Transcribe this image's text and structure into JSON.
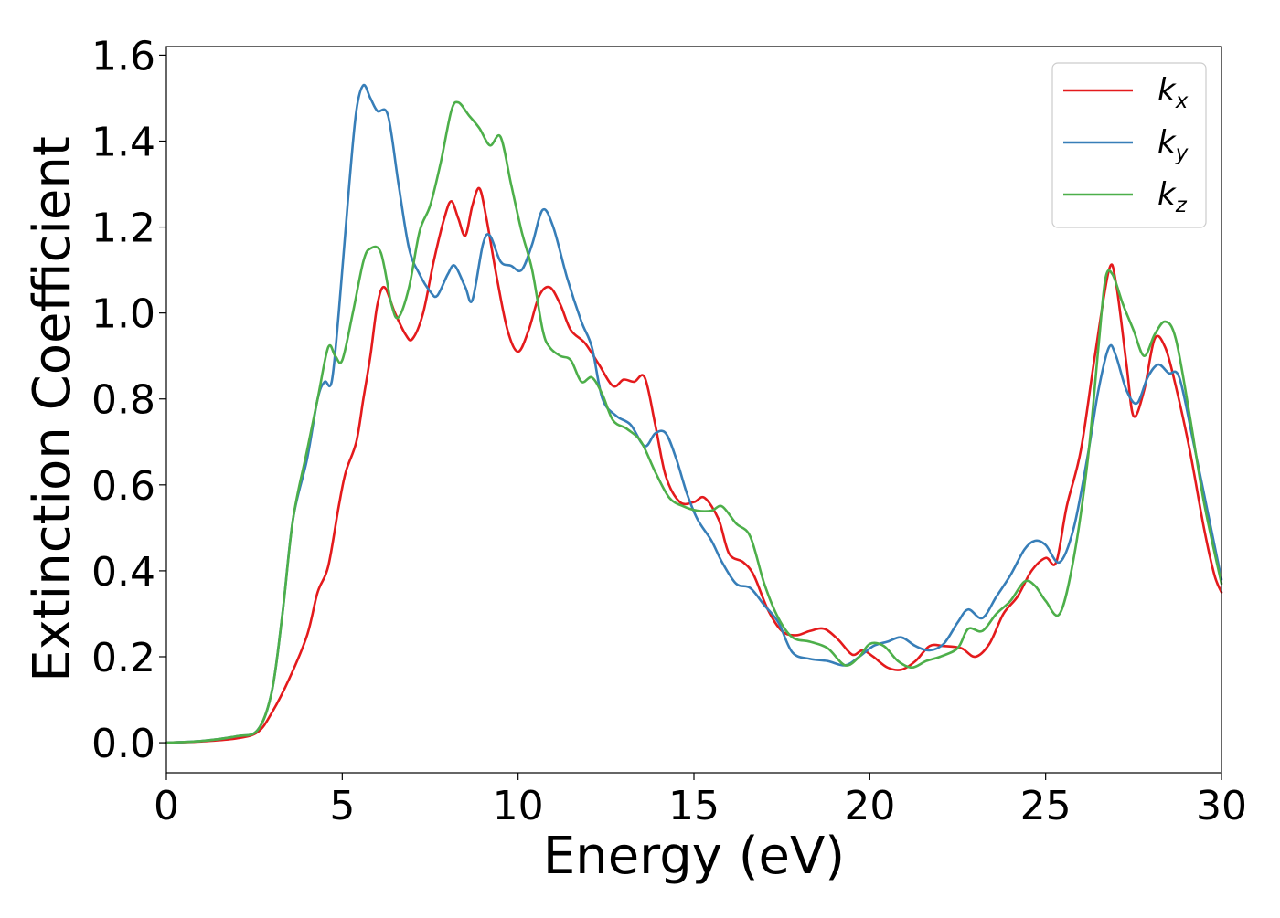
{
  "chart_data": {
    "type": "line",
    "title": "",
    "xlabel": "Energy (eV)",
    "ylabel": "Extinction Coefficient",
    "xlim": [
      0,
      30
    ],
    "ylim": [
      -0.07,
      1.62
    ],
    "xticks": [
      0,
      5,
      10,
      15,
      20,
      25,
      30
    ],
    "xtick_labels": [
      "0",
      "5",
      "10",
      "15",
      "20",
      "25",
      "30"
    ],
    "yticks": [
      0.0,
      0.2,
      0.4,
      0.6,
      0.8,
      1.0,
      1.2,
      1.4,
      1.6
    ],
    "ytick_labels": [
      "0.0",
      "0.2",
      "0.4",
      "0.6",
      "0.8",
      "1.0",
      "1.2",
      "1.4",
      "1.6"
    ],
    "grid": false,
    "legend": {
      "position": "top-right",
      "entries": [
        {
          "base": "k",
          "sub": "x",
          "color": "#e41a1c"
        },
        {
          "base": "k",
          "sub": "y",
          "color": "#377eb8"
        },
        {
          "base": "k",
          "sub": "z",
          "color": "#4daf4a"
        }
      ]
    },
    "series": [
      {
        "name": "kx",
        "color": "#e41a1c",
        "points": [
          [
            0,
            0
          ],
          [
            1,
            0.003
          ],
          [
            2,
            0.01
          ],
          [
            2.6,
            0.025
          ],
          [
            3,
            0.07
          ],
          [
            3.5,
            0.15
          ],
          [
            4,
            0.25
          ],
          [
            4.3,
            0.35
          ],
          [
            4.6,
            0.41
          ],
          [
            4.9,
            0.55
          ],
          [
            5.1,
            0.63
          ],
          [
            5.4,
            0.7
          ],
          [
            5.6,
            0.8
          ],
          [
            5.8,
            0.9
          ],
          [
            6.0,
            1.02
          ],
          [
            6.2,
            1.06
          ],
          [
            6.5,
            1.0
          ],
          [
            6.8,
            0.95
          ],
          [
            7.0,
            0.94
          ],
          [
            7.3,
            1.0
          ],
          [
            7.6,
            1.12
          ],
          [
            7.9,
            1.22
          ],
          [
            8.1,
            1.26
          ],
          [
            8.3,
            1.22
          ],
          [
            8.5,
            1.18
          ],
          [
            8.7,
            1.25
          ],
          [
            8.9,
            1.29
          ],
          [
            9.1,
            1.22
          ],
          [
            9.4,
            1.08
          ],
          [
            9.7,
            0.96
          ],
          [
            10.0,
            0.91
          ],
          [
            10.3,
            0.96
          ],
          [
            10.6,
            1.04
          ],
          [
            10.9,
            1.06
          ],
          [
            11.2,
            1.02
          ],
          [
            11.5,
            0.96
          ],
          [
            11.9,
            0.93
          ],
          [
            12.3,
            0.88
          ],
          [
            12.7,
            0.83
          ],
          [
            13.0,
            0.845
          ],
          [
            13.3,
            0.84
          ],
          [
            13.6,
            0.85
          ],
          [
            13.9,
            0.74
          ],
          [
            14.2,
            0.62
          ],
          [
            14.6,
            0.56
          ],
          [
            15.0,
            0.56
          ],
          [
            15.3,
            0.57
          ],
          [
            15.7,
            0.52
          ],
          [
            16.0,
            0.44
          ],
          [
            16.4,
            0.42
          ],
          [
            16.7,
            0.39
          ],
          [
            17.1,
            0.31
          ],
          [
            17.5,
            0.26
          ],
          [
            17.9,
            0.25
          ],
          [
            18.3,
            0.26
          ],
          [
            18.7,
            0.265
          ],
          [
            19.1,
            0.24
          ],
          [
            19.5,
            0.205
          ],
          [
            19.8,
            0.215
          ],
          [
            20.1,
            0.2
          ],
          [
            20.5,
            0.175
          ],
          [
            20.9,
            0.17
          ],
          [
            21.3,
            0.19
          ],
          [
            21.7,
            0.225
          ],
          [
            22.1,
            0.225
          ],
          [
            22.6,
            0.22
          ],
          [
            23.0,
            0.2
          ],
          [
            23.4,
            0.23
          ],
          [
            23.8,
            0.3
          ],
          [
            24.2,
            0.34
          ],
          [
            24.6,
            0.4
          ],
          [
            25.0,
            0.43
          ],
          [
            25.3,
            0.42
          ],
          [
            25.6,
            0.55
          ],
          [
            26.0,
            0.68
          ],
          [
            26.4,
            0.9
          ],
          [
            26.8,
            1.1
          ],
          [
            27.0,
            1.07
          ],
          [
            27.3,
            0.88
          ],
          [
            27.5,
            0.76
          ],
          [
            27.8,
            0.82
          ],
          [
            28.1,
            0.94
          ],
          [
            28.4,
            0.92
          ],
          [
            28.7,
            0.83
          ],
          [
            29.1,
            0.68
          ],
          [
            29.5,
            0.5
          ],
          [
            29.8,
            0.39
          ],
          [
            30.0,
            0.35
          ]
        ]
      },
      {
        "name": "ky",
        "color": "#377eb8",
        "points": [
          [
            0,
            0
          ],
          [
            1,
            0.004
          ],
          [
            2,
            0.015
          ],
          [
            2.6,
            0.03
          ],
          [
            3.0,
            0.12
          ],
          [
            3.3,
            0.3
          ],
          [
            3.6,
            0.52
          ],
          [
            4.0,
            0.66
          ],
          [
            4.3,
            0.8
          ],
          [
            4.5,
            0.84
          ],
          [
            4.7,
            0.84
          ],
          [
            4.9,
            1.0
          ],
          [
            5.2,
            1.3
          ],
          [
            5.4,
            1.47
          ],
          [
            5.6,
            1.53
          ],
          [
            5.8,
            1.5
          ],
          [
            6.0,
            1.47
          ],
          [
            6.3,
            1.46
          ],
          [
            6.6,
            1.3
          ],
          [
            6.9,
            1.15
          ],
          [
            7.2,
            1.09
          ],
          [
            7.5,
            1.05
          ],
          [
            7.7,
            1.04
          ],
          [
            8.0,
            1.09
          ],
          [
            8.2,
            1.11
          ],
          [
            8.5,
            1.06
          ],
          [
            8.7,
            1.03
          ],
          [
            9.0,
            1.16
          ],
          [
            9.2,
            1.18
          ],
          [
            9.5,
            1.12
          ],
          [
            9.8,
            1.11
          ],
          [
            10.1,
            1.1
          ],
          [
            10.4,
            1.16
          ],
          [
            10.7,
            1.24
          ],
          [
            11.0,
            1.2
          ],
          [
            11.4,
            1.08
          ],
          [
            11.8,
            0.98
          ],
          [
            12.1,
            0.92
          ],
          [
            12.4,
            0.8
          ],
          [
            12.8,
            0.76
          ],
          [
            13.2,
            0.74
          ],
          [
            13.6,
            0.69
          ],
          [
            13.9,
            0.72
          ],
          [
            14.2,
            0.72
          ],
          [
            14.5,
            0.66
          ],
          [
            14.8,
            0.58
          ],
          [
            15.1,
            0.52
          ],
          [
            15.5,
            0.47
          ],
          [
            15.8,
            0.42
          ],
          [
            16.2,
            0.37
          ],
          [
            16.6,
            0.36
          ],
          [
            17.0,
            0.32
          ],
          [
            17.4,
            0.28
          ],
          [
            17.8,
            0.21
          ],
          [
            18.3,
            0.195
          ],
          [
            18.8,
            0.19
          ],
          [
            19.3,
            0.18
          ],
          [
            19.7,
            0.2
          ],
          [
            20.1,
            0.225
          ],
          [
            20.5,
            0.235
          ],
          [
            20.9,
            0.245
          ],
          [
            21.3,
            0.225
          ],
          [
            21.7,
            0.215
          ],
          [
            22.1,
            0.23
          ],
          [
            22.5,
            0.28
          ],
          [
            22.8,
            0.31
          ],
          [
            23.2,
            0.29
          ],
          [
            23.6,
            0.34
          ],
          [
            24.0,
            0.39
          ],
          [
            24.4,
            0.45
          ],
          [
            24.7,
            0.47
          ],
          [
            25.0,
            0.46
          ],
          [
            25.4,
            0.42
          ],
          [
            25.8,
            0.5
          ],
          [
            26.2,
            0.67
          ],
          [
            26.5,
            0.82
          ],
          [
            26.8,
            0.92
          ],
          [
            27.0,
            0.9
          ],
          [
            27.3,
            0.82
          ],
          [
            27.6,
            0.79
          ],
          [
            27.9,
            0.85
          ],
          [
            28.2,
            0.88
          ],
          [
            28.5,
            0.86
          ],
          [
            28.8,
            0.85
          ],
          [
            29.2,
            0.7
          ],
          [
            29.6,
            0.54
          ],
          [
            30.0,
            0.38
          ]
        ]
      },
      {
        "name": "kz",
        "color": "#4daf4a",
        "points": [
          [
            0,
            0
          ],
          [
            1,
            0.004
          ],
          [
            2,
            0.015
          ],
          [
            2.6,
            0.03
          ],
          [
            3.0,
            0.12
          ],
          [
            3.3,
            0.3
          ],
          [
            3.6,
            0.52
          ],
          [
            4.0,
            0.68
          ],
          [
            4.3,
            0.8
          ],
          [
            4.6,
            0.92
          ],
          [
            4.8,
            0.9
          ],
          [
            5.0,
            0.89
          ],
          [
            5.3,
            1.0
          ],
          [
            5.6,
            1.12
          ],
          [
            5.8,
            1.15
          ],
          [
            6.1,
            1.14
          ],
          [
            6.4,
            1.02
          ],
          [
            6.6,
            0.99
          ],
          [
            6.9,
            1.06
          ],
          [
            7.2,
            1.19
          ],
          [
            7.5,
            1.25
          ],
          [
            7.8,
            1.35
          ],
          [
            8.1,
            1.47
          ],
          [
            8.3,
            1.49
          ],
          [
            8.6,
            1.46
          ],
          [
            8.9,
            1.43
          ],
          [
            9.2,
            1.39
          ],
          [
            9.5,
            1.41
          ],
          [
            9.8,
            1.3
          ],
          [
            10.1,
            1.19
          ],
          [
            10.4,
            1.1
          ],
          [
            10.7,
            0.96
          ],
          [
            10.9,
            0.92
          ],
          [
            11.2,
            0.9
          ],
          [
            11.5,
            0.89
          ],
          [
            11.8,
            0.84
          ],
          [
            12.1,
            0.85
          ],
          [
            12.4,
            0.81
          ],
          [
            12.7,
            0.75
          ],
          [
            13.1,
            0.73
          ],
          [
            13.5,
            0.7
          ],
          [
            13.9,
            0.63
          ],
          [
            14.3,
            0.57
          ],
          [
            14.7,
            0.55
          ],
          [
            15.1,
            0.54
          ],
          [
            15.5,
            0.54
          ],
          [
            15.8,
            0.55
          ],
          [
            16.2,
            0.51
          ],
          [
            16.6,
            0.48
          ],
          [
            17.0,
            0.37
          ],
          [
            17.4,
            0.29
          ],
          [
            17.8,
            0.245
          ],
          [
            18.3,
            0.235
          ],
          [
            18.8,
            0.22
          ],
          [
            19.3,
            0.18
          ],
          [
            19.7,
            0.2
          ],
          [
            20.0,
            0.23
          ],
          [
            20.4,
            0.225
          ],
          [
            20.8,
            0.19
          ],
          [
            21.2,
            0.175
          ],
          [
            21.6,
            0.19
          ],
          [
            22.0,
            0.2
          ],
          [
            22.5,
            0.22
          ],
          [
            22.8,
            0.265
          ],
          [
            23.2,
            0.26
          ],
          [
            23.6,
            0.3
          ],
          [
            24.0,
            0.33
          ],
          [
            24.4,
            0.375
          ],
          [
            24.7,
            0.365
          ],
          [
            25.0,
            0.33
          ],
          [
            25.4,
            0.3
          ],
          [
            25.8,
            0.43
          ],
          [
            26.2,
            0.66
          ],
          [
            26.5,
            0.92
          ],
          [
            26.7,
            1.08
          ],
          [
            26.9,
            1.09
          ],
          [
            27.2,
            1.02
          ],
          [
            27.5,
            0.96
          ],
          [
            27.8,
            0.9
          ],
          [
            28.1,
            0.95
          ],
          [
            28.4,
            0.98
          ],
          [
            28.7,
            0.94
          ],
          [
            29.1,
            0.76
          ],
          [
            29.5,
            0.56
          ],
          [
            30.0,
            0.37
          ]
        ]
      }
    ]
  }
}
